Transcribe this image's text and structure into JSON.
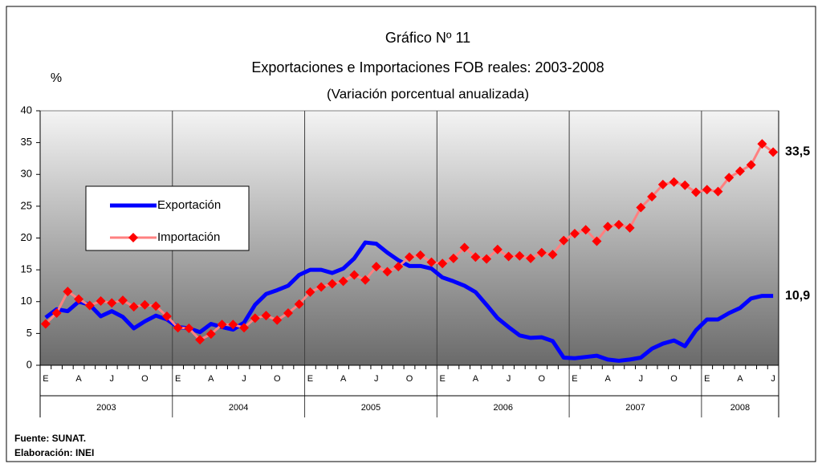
{
  "chart_data": {
    "type": "line",
    "title": "Gráfico Nº 11",
    "subtitle": "Exportaciones e Importaciones FOB reales: 2003-2008",
    "subtitle2": "(Variación porcentual  anualizada)",
    "y_label": "%",
    "categories": [
      "E",
      null,
      null,
      "A",
      null,
      null,
      "J",
      null,
      null,
      "O",
      null,
      null,
      "E",
      null,
      null,
      "A",
      null,
      null,
      "J",
      null,
      null,
      "O",
      null,
      null,
      "E",
      null,
      null,
      "A",
      null,
      null,
      "J",
      null,
      null,
      "O",
      null,
      null,
      "E",
      null,
      null,
      "A",
      null,
      null,
      "J",
      null,
      null,
      "O",
      null,
      null,
      "E",
      null,
      null,
      "A",
      null,
      null,
      "J",
      null,
      null,
      "O",
      null,
      null,
      "E",
      null,
      null,
      "A",
      null,
      null,
      "J"
    ],
    "years": [
      "2003",
      "2004",
      "2005",
      "2006",
      "2007",
      "2008"
    ],
    "ylim": [
      0,
      40
    ],
    "yticks": [
      0,
      5,
      10,
      15,
      20,
      25,
      30,
      35,
      40
    ],
    "series": [
      {
        "name": "Exportación",
        "color": "#0000ff",
        "values": [
          7.5,
          8.8,
          8.5,
          10,
          9.5,
          7.7,
          8.5,
          7.6,
          5.8,
          6.9,
          7.8,
          7.2,
          6,
          5.8,
          5.2,
          6.5,
          6,
          5.6,
          6.7,
          9.5,
          11.2,
          11.8,
          12.5,
          14.2,
          15,
          15,
          14.5,
          15.2,
          16.8,
          19.3,
          19.1,
          17.7,
          16.5,
          15.6,
          15.6,
          15.2,
          13.8,
          13.2,
          12.5,
          11.5,
          9.5,
          7.4,
          6,
          4.7,
          4.3,
          4.4,
          3.8,
          1.2,
          1.1,
          1.3,
          1.5,
          0.9,
          0.7,
          0.9,
          1.2,
          2.6,
          3.4,
          3.9,
          3,
          5.5,
          7.2,
          7.2,
          8.2,
          9,
          10.5,
          10.9,
          10.9
        ],
        "value_labels": [
          null,
          null,
          null,
          null,
          null,
          null,
          null,
          null,
          null,
          null,
          null,
          null,
          null,
          null,
          null,
          null,
          null,
          null,
          null,
          null,
          null,
          null,
          null,
          null,
          null,
          null,
          null,
          null,
          null,
          null,
          null,
          null,
          null,
          null,
          null,
          null,
          null,
          null,
          null,
          null,
          null,
          null,
          null,
          null,
          null,
          null,
          null,
          null,
          null,
          null,
          null,
          null,
          null,
          null,
          null,
          null,
          null,
          null,
          null,
          null,
          null,
          null,
          null,
          null,
          null,
          null,
          "10,9"
        ]
      },
      {
        "name": "Importación",
        "color": "#ff8080",
        "marker_color": "#ff0000",
        "values": [
          6.5,
          8.2,
          11.6,
          10.4,
          9.4,
          10.1,
          9.8,
          10.2,
          9.2,
          9.5,
          9.3,
          7.7,
          5.9,
          5.8,
          4,
          4.9,
          6.4,
          6.4,
          5.9,
          7.4,
          7.8,
          7.1,
          8.2,
          9.6,
          11.5,
          12.3,
          12.8,
          13.2,
          14.2,
          13.4,
          15.5,
          14.7,
          15.5,
          17,
          17.3,
          16.2,
          16,
          16.8,
          18.5,
          17,
          16.7,
          18.2,
          17.1,
          17.2,
          16.8,
          17.7,
          17.4,
          19.6,
          20.7,
          21.3,
          19.5,
          21.8,
          22.1,
          21.6,
          24.8,
          26.5,
          28.4,
          28.8,
          28.3,
          27.2,
          27.6,
          27.3,
          29.5,
          30.5,
          31.5,
          34.8,
          33.5
        ],
        "value_labels": [
          null,
          null,
          null,
          null,
          null,
          null,
          null,
          null,
          null,
          null,
          null,
          null,
          null,
          null,
          null,
          null,
          null,
          null,
          null,
          null,
          null,
          null,
          null,
          null,
          null,
          null,
          null,
          null,
          null,
          null,
          null,
          null,
          null,
          null,
          null,
          null,
          null,
          null,
          null,
          null,
          null,
          null,
          null,
          null,
          null,
          null,
          null,
          null,
          null,
          null,
          null,
          null,
          null,
          null,
          null,
          null,
          null,
          null,
          null,
          null,
          null,
          null,
          null,
          null,
          null,
          null,
          "33,5"
        ]
      }
    ],
    "source": "Fuente: SUNAT.",
    "credit": "Elaboración: INEI"
  }
}
